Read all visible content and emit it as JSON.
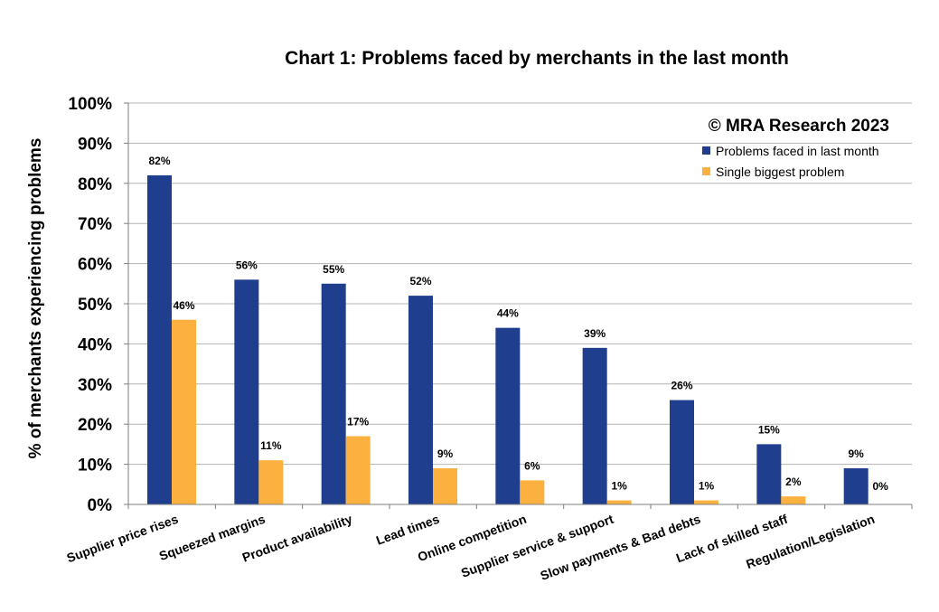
{
  "chart_data": {
    "type": "bar",
    "title": "Chart 1: Problems faced by merchants in the last month",
    "xlabel": "",
    "ylabel": "% of merchants experiencing problems",
    "ylim": [
      0,
      100
    ],
    "yticks": [
      "0%",
      "10%",
      "20%",
      "30%",
      "40%",
      "50%",
      "60%",
      "70%",
      "80%",
      "90%",
      "100%"
    ],
    "grid": true,
    "legend_position": "top-right",
    "annotation": "© MRA Research 2023",
    "categories": [
      "Supplier price rises",
      "Squeezed margins",
      "Product availability",
      "Lead times",
      "Online competition",
      "Supplier service & support",
      "Slow payments & Bad debts",
      "Lack of skilled staff",
      "Regulation/Legislation"
    ],
    "series": [
      {
        "name": "Problems faced in last month",
        "color": "#1f3e8e",
        "values": [
          82,
          56,
          55,
          52,
          44,
          39,
          26,
          15,
          9
        ],
        "labels": [
          "82%",
          "56%",
          "55%",
          "52%",
          "44%",
          "39%",
          "26%",
          "15%",
          "9%"
        ]
      },
      {
        "name": "Single biggest problem",
        "color": "#fbb040",
        "values": [
          46,
          11,
          17,
          9,
          6,
          1,
          1,
          2,
          0
        ],
        "labels": [
          "46%",
          "11%",
          "17%",
          "9%",
          "6%",
          "1%",
          "1%",
          "2%",
          "0%"
        ]
      }
    ]
  }
}
